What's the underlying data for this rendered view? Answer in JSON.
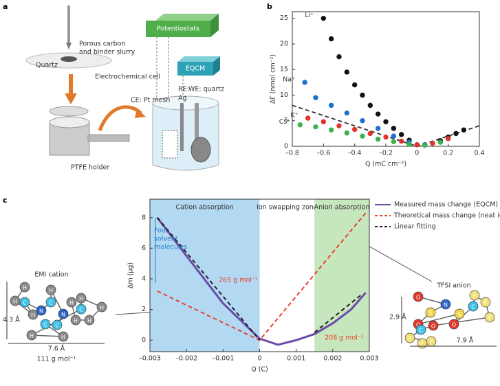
{
  "panel_labels": [
    "a",
    "b",
    "c"
  ],
  "setup": {
    "slurry": [
      "Porous carbon",
      "and binder slurry"
    ],
    "quartz": "Quartz",
    "cell": "Electrochemical cell",
    "potentiostats": "Potentiostats",
    "eqcm": "EQCM",
    "re": [
      "RE:",
      "Ag"
    ],
    "we": "WE: quartz",
    "ce": "CE: Pt mesh",
    "holder": "PTFE holder"
  },
  "molecules": [
    {
      "name": "EMI cation",
      "dims": [
        "4.3 Å",
        "7.6 Å"
      ],
      "mass": "111 g mol⁻¹",
      "atoms": [
        "H",
        "H",
        "H",
        "C",
        "N",
        "C",
        "H",
        "N",
        "C",
        "C",
        "H",
        "H",
        "C",
        "H",
        "H",
        "H",
        "H",
        "H"
      ]
    },
    {
      "name": "TFSI anion",
      "dims": [
        "2.9 Å",
        "7.9 Å"
      ],
      "atoms": [
        "O",
        "N",
        "S",
        "O",
        "S",
        "O",
        "C",
        "F",
        "F",
        "F",
        "O",
        "C",
        "F",
        "F",
        "F"
      ]
    }
  ],
  "chart_data": [
    {
      "type": "scatter",
      "xlabel": "Q (mC cm⁻²)",
      "ylabel": "ΔΓ (nmol cm⁻²)",
      "xlim": [
        -0.8,
        0.4
      ],
      "ylim": [
        0,
        26.3
      ],
      "xticks": [
        {
          "value": -0.8,
          "label": "–0.8"
        },
        {
          "value": -0.6,
          "label": "–0.6"
        },
        {
          "value": -0.4,
          "label": "–0.4"
        },
        {
          "value": -0.2,
          "label": "–0.2"
        },
        0,
        0.2,
        0.4
      ],
      "yticks": [
        0,
        5,
        10,
        15,
        20,
        25
      ],
      "series": [
        {
          "name": "Li⁺",
          "color": "#111111",
          "x": [
            -0.6,
            -0.55,
            -0.5,
            -0.45,
            -0.4,
            -0.35,
            -0.3,
            -0.25,
            -0.2,
            -0.15,
            -0.1,
            -0.05,
            0,
            0.05,
            0.1,
            0.15,
            0.2,
            0.25,
            0.3
          ],
          "values": [
            25,
            21,
            17.5,
            14.5,
            12,
            10,
            8,
            6.3,
            4.8,
            3.5,
            2.3,
            1.2,
            0.3,
            0.3,
            0.6,
            1.1,
            1.8,
            2.5,
            3.2
          ]
        },
        {
          "name": "Na⁺",
          "color": "#1f6fd0",
          "x": [
            -0.72,
            -0.65,
            -0.55,
            -0.45,
            -0.35,
            -0.25,
            -0.15,
            -0.05,
            0.05,
            0.15
          ],
          "values": [
            12.5,
            9.5,
            8,
            6.5,
            5,
            3.5,
            2,
            0.8,
            0.3,
            0.8
          ]
        },
        {
          "name": "K⁺",
          "color": "#e0342a",
          "x": [
            -0.7,
            -0.6,
            -0.5,
            -0.4,
            -0.3,
            -0.2,
            -0.1,
            0,
            0.1,
            0.2
          ],
          "values": [
            5.5,
            4.8,
            4,
            3.3,
            2.5,
            1.8,
            1,
            0.3,
            0.6,
            1.5
          ]
        },
        {
          "name": "Cs⁺",
          "color": "#3cb34a",
          "x": [
            -0.75,
            -0.65,
            -0.55,
            -0.45,
            -0.35,
            -0.25,
            -0.15,
            -0.05,
            0.05,
            0.15
          ],
          "values": [
            4.2,
            3.8,
            3.2,
            2.6,
            2,
            1.4,
            0.9,
            0.4,
            0.2,
            0.8
          ]
        }
      ],
      "fit": {
        "color": "#333333",
        "x": [
          -0.8,
          0,
          0.4
        ],
        "values": [
          8,
          0,
          4
        ]
      }
    },
    {
      "type": "line",
      "xlabel": "Q (C)",
      "ylabel": "Δm (μg)",
      "xlim": [
        -0.003,
        0.003
      ],
      "ylim": [
        -0.75,
        9.2
      ],
      "xticks": [
        {
          "value": -0.003,
          "label": "–0.003"
        },
        {
          "value": -0.002,
          "label": "–0.002"
        },
        {
          "value": -0.001,
          "label": "–0.001"
        },
        0,
        0.001,
        0.002,
        0.003
      ],
      "yticks": [
        0,
        2,
        4,
        6,
        8
      ],
      "regions": [
        {
          "label": "Cation absorption",
          "range": [
            -0.003,
            0
          ],
          "color": "#b3d9f2"
        },
        {
          "label": "Ion swapping zone",
          "range": [
            0,
            0.0015
          ]
        },
        {
          "label": "Anion absorption",
          "range": [
            0.0015,
            0.003
          ],
          "color": "#c6e6bd"
        }
      ],
      "annotations": {
        "solvent": [
          "Four",
          "solvent",
          "molecules"
        ],
        "cation_mass": "265 g mol⁻¹",
        "anion_mass": "208 g mol⁻¹"
      },
      "series": [
        {
          "name": "Measured mass change (EQCM)",
          "color": "#6a4ca8",
          "dash": false,
          "x": [
            -0.0028,
            -0.002,
            -0.001,
            0,
            0.0005,
            0.001,
            0.0015,
            0.002,
            0.0025,
            0.0029
          ],
          "values": [
            8,
            5.5,
            2.4,
            0.1,
            -0.3,
            0,
            0.4,
            1.1,
            2,
            3.1
          ]
        },
        {
          "name": "Theoretical mass change (neat ions)",
          "color": "#e8412c",
          "dash": true,
          "x": [
            -0.0028,
            0,
            0.0029
          ],
          "values": [
            3.2,
            0,
            8.3
          ]
        },
        {
          "name": "Linear fitting",
          "color": "#222222",
          "dash": true,
          "x": [
            -0.0028,
            0,
            0.0007,
            0.0015,
            0.0028
          ],
          "values": [
            8,
            0,
            null,
            0.5,
            3
          ]
        }
      ]
    }
  ]
}
